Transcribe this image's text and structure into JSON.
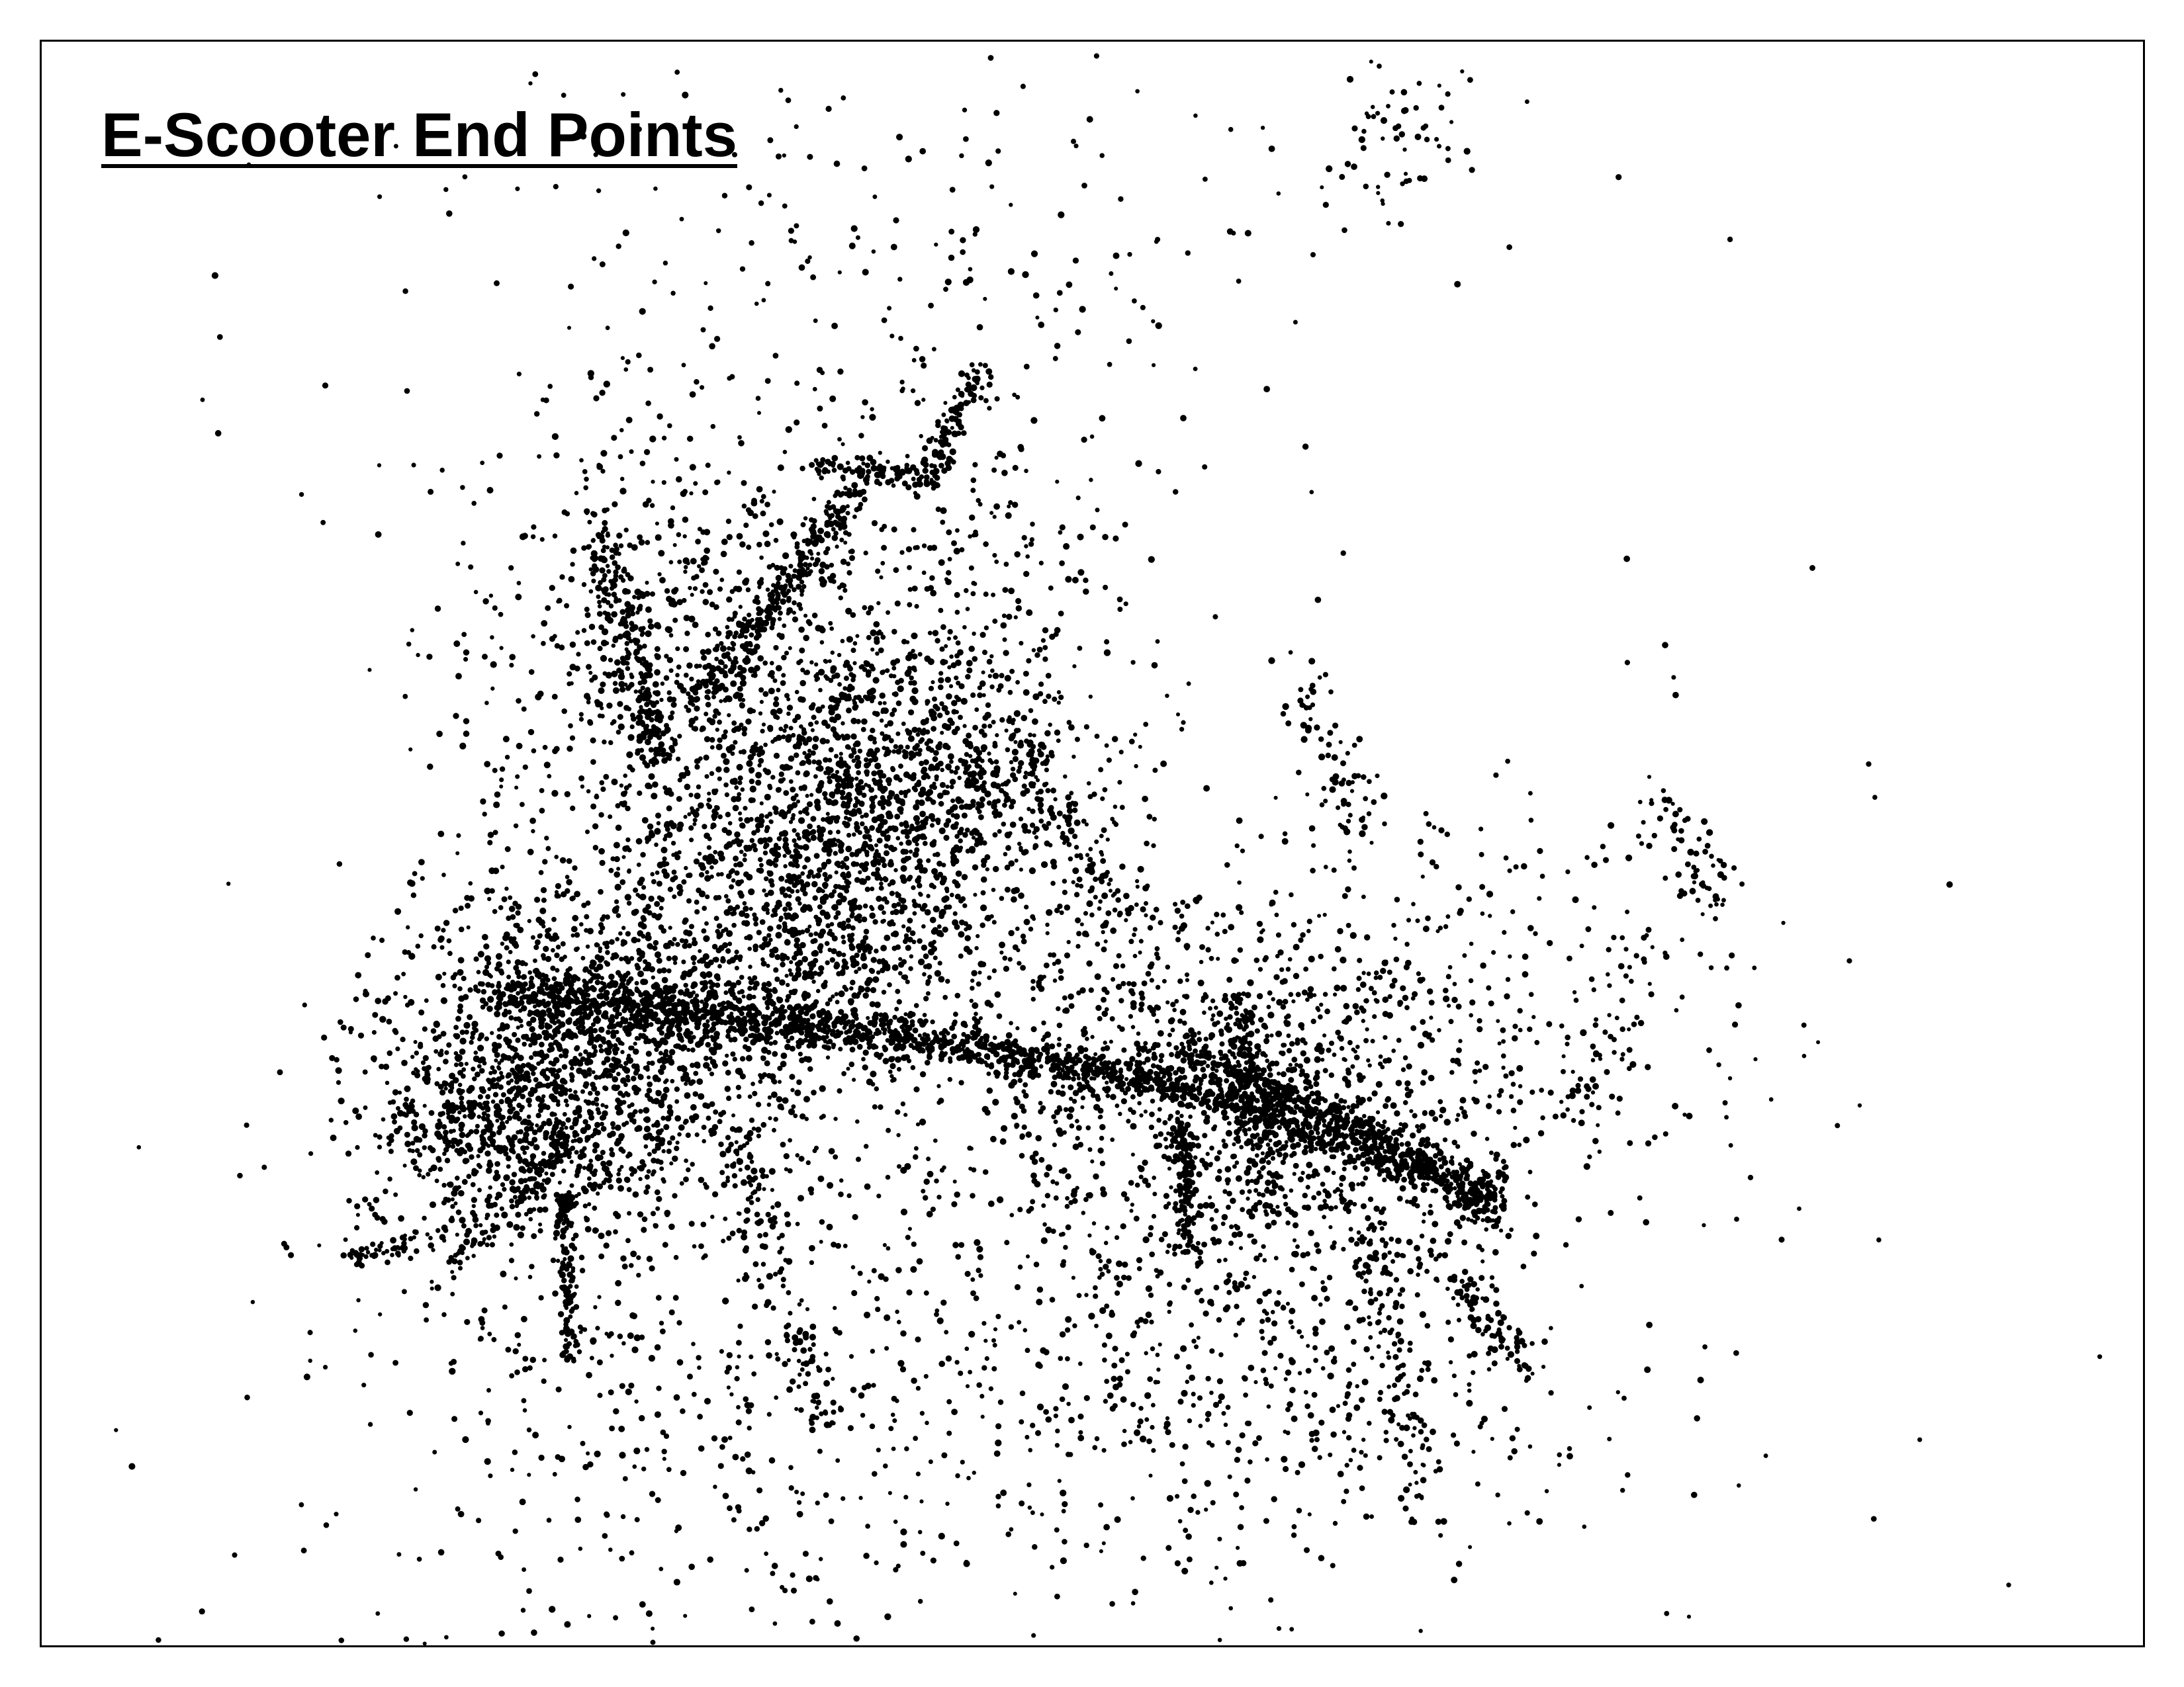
{
  "map": {
    "title": "E-Scooter End Points",
    "point_color": "#000000",
    "frame_color": "#000000",
    "background": "#ffffff"
  }
}
